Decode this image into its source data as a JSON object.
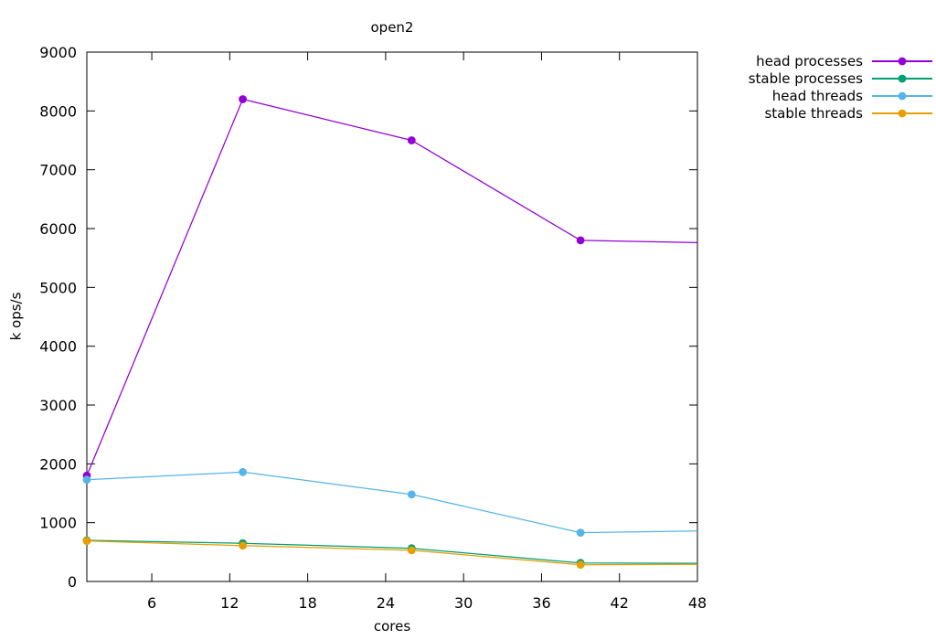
{
  "chart_data": {
    "type": "line",
    "title": "open2",
    "xlabel": "cores",
    "ylabel": "k ops/s",
    "xlim": [
      1,
      48
    ],
    "ylim": [
      0,
      9000
    ],
    "xticks": [
      6,
      12,
      18,
      24,
      30,
      36,
      42,
      48
    ],
    "yticks": [
      0,
      1000,
      2000,
      3000,
      4000,
      5000,
      6000,
      7000,
      8000,
      9000
    ],
    "grid": false,
    "legend_position": "outside-top-right",
    "note": "lines continue to x=48 plot edge without a marker on the last segment",
    "series": [
      {
        "name": "head processes",
        "color": "#9400d3",
        "x": [
          1,
          13,
          26,
          39,
          48
        ],
        "y": [
          1800,
          8200,
          7500,
          5800,
          5760
        ],
        "markers_at_x": [
          1,
          13,
          26,
          39
        ]
      },
      {
        "name": "stable processes",
        "color": "#009e73",
        "x": [
          1,
          13,
          26,
          39,
          48
        ],
        "y": [
          700,
          650,
          565,
          315,
          310
        ],
        "markers_at_x": [
          1,
          13,
          26,
          39
        ]
      },
      {
        "name": "head threads",
        "color": "#56b4e9",
        "x": [
          1,
          13,
          26,
          39,
          48
        ],
        "y": [
          1730,
          1860,
          1480,
          830,
          860
        ],
        "markers_at_x": [
          1,
          13,
          26,
          39
        ]
      },
      {
        "name": "stable threads",
        "color": "#e69f00",
        "x": [
          1,
          13,
          26,
          39,
          48
        ],
        "y": [
          690,
          610,
          530,
          285,
          290
        ],
        "markers_at_x": [
          1,
          13,
          26,
          39
        ]
      }
    ]
  }
}
